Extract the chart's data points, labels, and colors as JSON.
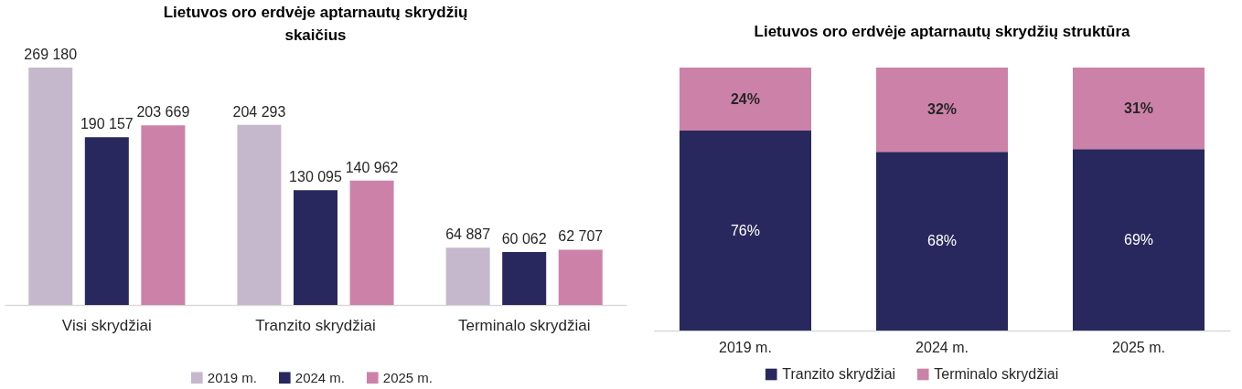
{
  "chart_data": [
    {
      "type": "bar",
      "title": "Lietuvos oro erdvėje aptarnautų skrydžių skaičius",
      "categories": [
        "Visi skrydžiai",
        "Tranzito skrydžiai",
        "Terminalo skrydžiai"
      ],
      "series": [
        {
          "name": "2019 m.",
          "color": "#c6b8cc",
          "values": [
            269180,
            204293,
            64887
          ],
          "value_labels": [
            "269 180",
            "204 293",
            "64 887"
          ]
        },
        {
          "name": "2024 m.",
          "color": "#29285e",
          "values": [
            190157,
            130095,
            60062
          ],
          "value_labels": [
            "190 157",
            "130 095",
            "60 062"
          ]
        },
        {
          "name": "2025 m.",
          "color": "#cc82a8",
          "values": [
            203669,
            140962,
            62707
          ],
          "value_labels": [
            "203 669",
            "140 962",
            "62 707"
          ]
        }
      ],
      "legend": "bottom"
    },
    {
      "type": "bar",
      "title": "Lietuvos oro erdvėje aptarnautų skrydžių struktūra",
      "categories": [
        "2019 m.",
        "2024 m.",
        "2025 m."
      ],
      "stacked": true,
      "series": [
        {
          "name": "Tranzito skrydžiai",
          "color": "#29285e",
          "values": [
            76,
            68,
            69
          ],
          "value_labels": [
            "76%",
            "68%",
            "69%"
          ]
        },
        {
          "name": "Terminalo skrydžiai",
          "color": "#cc82a8",
          "values": [
            24,
            32,
            31
          ],
          "value_labels": [
            "24%",
            "32%",
            "31%"
          ]
        }
      ],
      "legend": "bottom"
    }
  ]
}
